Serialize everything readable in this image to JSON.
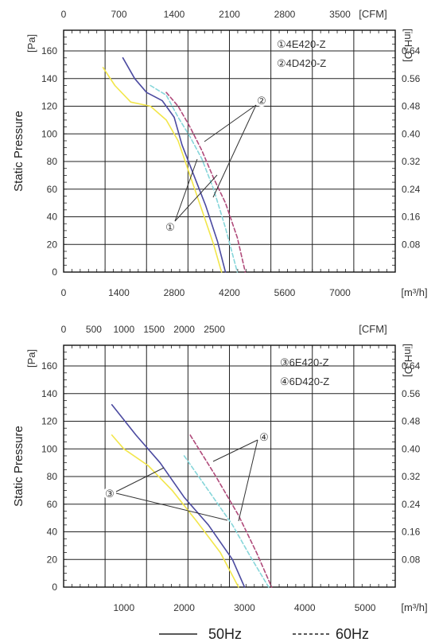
{
  "chart_data": [
    {
      "type": "line",
      "ylabel": "Static Pressure",
      "y_unit_left": "[Pa]",
      "y_unit_right": "[inH₂O]",
      "x_unit_bottom": "[m³/h]",
      "x_unit_top": "[CFM]",
      "xlim": [
        0,
        8400
      ],
      "ylim": [
        0,
        175
      ],
      "x_ticks_bottom": [
        "0",
        "1400",
        "2800",
        "4200",
        "5600",
        "7000"
      ],
      "x_ticks_top": [
        "0",
        "700",
        "1400",
        "2100",
        "2800",
        "3500"
      ],
      "y_ticks_left": [
        "0",
        "20",
        "40",
        "60",
        "80",
        "100",
        "120",
        "140",
        "160"
      ],
      "y_ticks_right": [
        "0.08",
        "0.16",
        "0.24",
        "0.32",
        "0.40",
        "0.48",
        "0.56",
        "0.64"
      ],
      "legend": [
        "①4E420-Z",
        "②4D420-Z"
      ],
      "annotations": [
        "①",
        "②"
      ],
      "grid": true,
      "series": [
        {
          "color": "#f2e64a",
          "style": "solid",
          "x": [
            1000,
            1300,
            1700,
            2200,
            2600,
            2900,
            3200,
            3500,
            3800,
            4000
          ],
          "y": [
            148,
            135,
            123,
            120,
            110,
            95,
            70,
            45,
            20,
            0
          ]
        },
        {
          "color": "#4b4aa0",
          "style": "solid",
          "x": [
            1500,
            1800,
            2100,
            2500,
            2800,
            3000,
            3300,
            3600,
            3900,
            4100
          ],
          "y": [
            155,
            140,
            130,
            124,
            112,
            92,
            70,
            48,
            22,
            0
          ]
        },
        {
          "color": "#86d6da",
          "style": "dashed",
          "x": [
            2200,
            2600,
            2900,
            3200,
            3500,
            3800,
            4100,
            4400
          ],
          "y": [
            135,
            128,
            112,
            98,
            82,
            60,
            32,
            0
          ]
        },
        {
          "color": "#b04a7a",
          "style": "dashed",
          "x": [
            2600,
            2900,
            3200,
            3500,
            3800,
            4100,
            4400,
            4600
          ],
          "y": [
            130,
            120,
            105,
            88,
            68,
            50,
            25,
            0
          ]
        }
      ]
    },
    {
      "type": "line",
      "ylabel": "Static Pressure",
      "y_unit_left": "[Pa]",
      "y_unit_right": "[inH₂O]",
      "x_unit_bottom": "[m³/h]",
      "x_unit_top": "[CFM]",
      "xlim": [
        0,
        5500
      ],
      "ylim": [
        0,
        175
      ],
      "x_ticks_bottom": [
        "1000",
        "2000",
        "3000",
        "4000",
        "5000"
      ],
      "x_ticks_top": [
        "0",
        "500",
        "1000",
        "1500",
        "2000",
        "2500"
      ],
      "y_ticks_left": [
        "0",
        "20",
        "40",
        "60",
        "80",
        "100",
        "120",
        "140",
        "160"
      ],
      "y_ticks_right": [
        "0.08",
        "0.16",
        "0.24",
        "0.32",
        "0.40",
        "0.48",
        "0.56",
        "0.64"
      ],
      "legend": [
        "③6E420-Z",
        "④6D420-Z"
      ],
      "annotations": [
        "③",
        "④"
      ],
      "grid": true,
      "series": [
        {
          "color": "#f2e64a",
          "style": "solid",
          "x": [
            800,
            1000,
            1400,
            1800,
            2200,
            2600,
            2900
          ],
          "y": [
            110,
            100,
            88,
            70,
            48,
            25,
            0
          ]
        },
        {
          "color": "#4b4aa0",
          "style": "solid",
          "x": [
            800,
            1200,
            1600,
            2000,
            2400,
            2800,
            3000
          ],
          "y": [
            132,
            110,
            90,
            65,
            45,
            20,
            0
          ]
        },
        {
          "color": "#86d6da",
          "style": "dashed",
          "x": [
            2000,
            2400,
            2800,
            3100,
            3400
          ],
          "y": [
            95,
            70,
            45,
            22,
            0
          ]
        },
        {
          "color": "#b04a7a",
          "style": "dashed",
          "x": [
            2100,
            2500,
            2900,
            3200,
            3450
          ],
          "y": [
            110,
            82,
            52,
            25,
            0
          ]
        }
      ]
    }
  ],
  "bottom_legend": {
    "solid_label": "50Hz",
    "dashed_label": "60Hz"
  }
}
